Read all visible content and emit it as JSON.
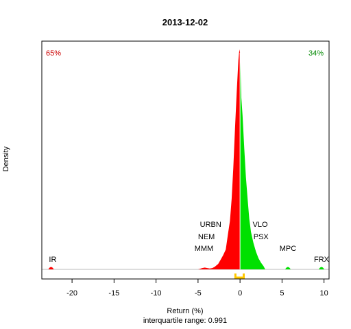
{
  "chart_data": {
    "type": "area",
    "title": "2013-12-02",
    "xlabel": "Return (%)",
    "subtitle": "interquartile range: 0.991",
    "ylabel": "Density",
    "xlim": [
      -23.6,
      10.6
    ],
    "ylim": [
      0,
      1
    ],
    "x_ticks": [
      -20,
      -15,
      -10,
      -5,
      0,
      5,
      10
    ],
    "pct_negative": "65%",
    "pct_positive": "34%",
    "iqr": [
      -0.55,
      0.44
    ],
    "colors": {
      "negative": "#ff0000",
      "positive": "#00e000",
      "iqr_marker": "#ffc800",
      "axis": "#000000",
      "pct_negative": "#cc0000",
      "pct_positive": "#008800"
    },
    "density_negative": [
      [
        -5.0,
        0.0
      ],
      [
        -4.5,
        0.006
      ],
      [
        -4.2,
        0.008
      ],
      [
        -3.9,
        0.006
      ],
      [
        -3.6,
        0.004
      ],
      [
        -3.3,
        0.006
      ],
      [
        -3.0,
        0.012
      ],
      [
        -2.6,
        0.025
      ],
      [
        -2.3,
        0.045
      ],
      [
        -2.0,
        0.065
      ],
      [
        -1.7,
        0.09
      ],
      [
        -1.4,
        0.17
      ],
      [
        -1.2,
        0.22
      ],
      [
        -1.0,
        0.32
      ],
      [
        -0.8,
        0.46
      ],
      [
        -0.6,
        0.64
      ],
      [
        -0.4,
        0.8
      ],
      [
        -0.2,
        0.95
      ],
      [
        -0.08,
        1.0
      ],
      [
        0.0,
        0.985
      ]
    ],
    "density_positive": [
      [
        0.0,
        0.985
      ],
      [
        0.15,
        0.78
      ],
      [
        0.3,
        0.7
      ],
      [
        0.5,
        0.55
      ],
      [
        0.7,
        0.42
      ],
      [
        0.9,
        0.32
      ],
      [
        1.1,
        0.23
      ],
      [
        1.3,
        0.17
      ],
      [
        1.6,
        0.12
      ],
      [
        1.9,
        0.08
      ],
      [
        2.2,
        0.05
      ],
      [
        2.5,
        0.03
      ],
      [
        2.8,
        0.015
      ],
      [
        3.0,
        0.0
      ]
    ],
    "outlier_bumps": [
      {
        "x": -22.5,
        "side": "negative"
      },
      {
        "x": 5.7,
        "side": "positive"
      },
      {
        "x": 9.7,
        "side": "positive"
      }
    ],
    "annotations": [
      {
        "label": "IR",
        "x": -22.3,
        "row": 0
      },
      {
        "label": "MMM",
        "x": -4.3,
        "row": 1
      },
      {
        "label": "NEM",
        "x": -4.0,
        "row": 2
      },
      {
        "label": "URBN",
        "x": -3.5,
        "row": 3
      },
      {
        "label": "PSX",
        "x": 2.5,
        "row": 2
      },
      {
        "label": "VLO",
        "x": 2.4,
        "row": 3
      },
      {
        "label": "MPC",
        "x": 5.7,
        "row": 1
      },
      {
        "label": "FRX",
        "x": 9.7,
        "row": 0
      }
    ]
  }
}
